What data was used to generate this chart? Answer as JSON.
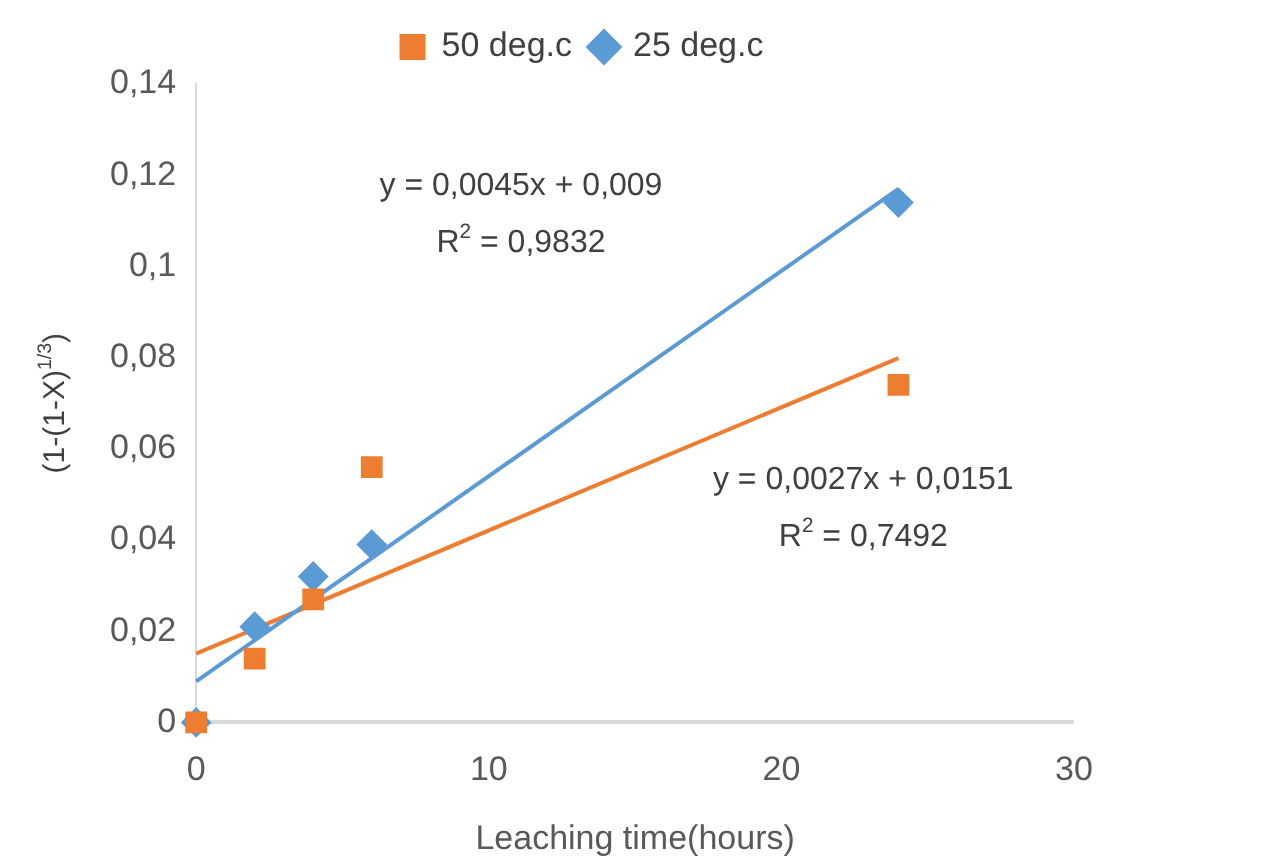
{
  "chart_data": {
    "type": "scatter",
    "xlabel": "Leaching time(hours)",
    "ylabel": "(1-(1-X)$^{1/3}$)",
    "xlim": [
      0,
      30
    ],
    "xticks": [
      0,
      10,
      20,
      30
    ],
    "ylim": [
      0,
      0.14
    ],
    "yticks": [
      0,
      {
        "value": 0.02,
        "label": "0,02"
      },
      {
        "value": 0.04,
        "label": "0,04"
      },
      {
        "value": 0.06,
        "label": "0,06"
      },
      {
        "value": 0.08,
        "label": "0,08"
      },
      {
        "value": 0.1,
        "label": "0,1"
      },
      {
        "value": 0.12,
        "label": "0,12"
      },
      {
        "value": 0.14,
        "label": "0,14"
      }
    ],
    "grid": false,
    "legend": "top",
    "series": [
      {
        "name": "50 deg.c",
        "color": "#ed7d31",
        "marker": "square",
        "x": [
          0,
          2,
          4,
          6,
          24
        ],
        "values": [
          0,
          0.014,
          0.027,
          0.056,
          0.074
        ]
      },
      {
        "name": "25 deg.c",
        "color": "#5b9bd5",
        "marker": "diamond",
        "x": [
          0,
          2,
          4,
          6,
          24
        ],
        "values": [
          0,
          0.021,
          0.032,
          0.039,
          0.114
        ]
      },
      {
        "type": "line",
        "color": "#5b9bd5",
        "marker": "none",
        "x": [
          0,
          24
        ],
        "values": [
          0.009,
          0.117
        ]
      },
      {
        "type": "line",
        "color": "#ed7d31",
        "marker": "none",
        "x": [
          0,
          24
        ],
        "values": [
          0.0151,
          0.0799
        ]
      }
    ],
    "annotations": [
      "y = 0,0045x + 0,009",
      "R$^{2}$ = 0,9832",
      "y = 0,0027x + 0,0151",
      "R$^{2}$ = 0,7492"
    ]
  }
}
